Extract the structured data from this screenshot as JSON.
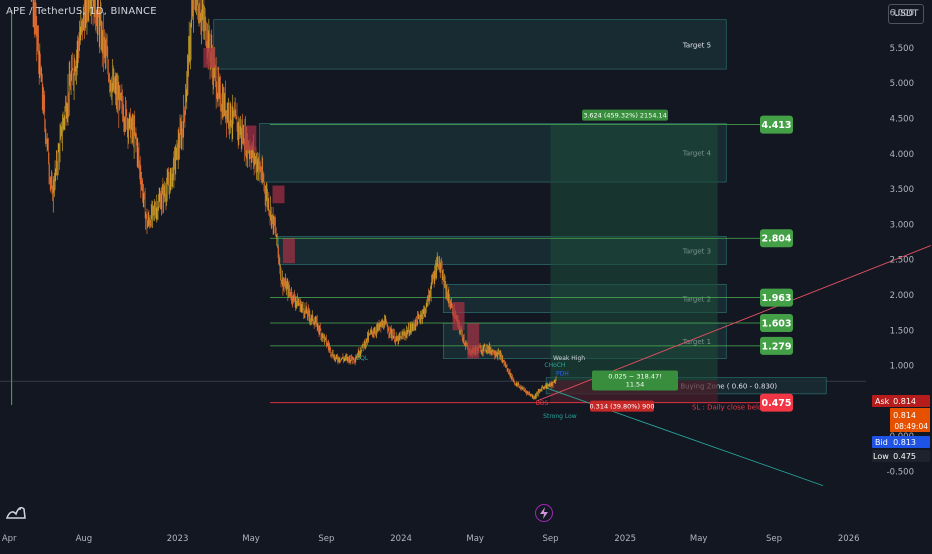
{
  "header": {
    "symbol": "APE / TetherUS, 1D, BINANCE",
    "currency": "USDT"
  },
  "colors": {
    "bg": "#131722",
    "up": "#c9a227",
    "down": "#e06b2e",
    "green_tag": "#4caf50",
    "red_tag": "#f23645",
    "zone_fill": "#1d3a40",
    "zone_stroke": "#2a6f6f",
    "profit_fill": "#1e4d3a",
    "loss_fill": "#4a1f2a"
  },
  "chart_data": {
    "type": "candlestick",
    "title": "APE / TetherUS, 1D, BINANCE",
    "y_axis": {
      "ticks": [
        6.0,
        5.5,
        5.0,
        4.5,
        4.0,
        3.5,
        3.0,
        2.5,
        2.0,
        1.5,
        1.0,
        0.5,
        0.0,
        -0.5
      ],
      "tick_labels": [
        "6.000",
        "5.500",
        "5.000",
        "4.500",
        "4.000",
        "3.500",
        "3.000",
        "2.500",
        "2.000",
        "1.500",
        "1.000",
        "0.500",
        "0.000",
        "-0.500"
      ],
      "range": [
        -0.75,
        6.75
      ]
    },
    "x_axis": {
      "labels": [
        "Apr",
        "Aug",
        "2023",
        "May",
        "Sep",
        "2024",
        "May",
        "Sep",
        "2025",
        "May",
        "Sep",
        "2026"
      ],
      "dates": [
        "2022-04-01",
        "2022-08-01",
        "2023-01-01",
        "2023-05-01",
        "2023-09-01",
        "2024-01-01",
        "2024-05-01",
        "2024-09-01",
        "2025-01-01",
        "2025-05-01",
        "2025-09-01",
        "2026-01-01"
      ],
      "range": [
        "2022-03-17",
        "2026-05-17"
      ]
    },
    "price_path": [
      [
        "2022-03-17",
        6.8
      ],
      [
        "2022-04-10",
        9.0
      ],
      [
        "2022-05-12",
        6.0
      ],
      [
        "2022-06-10",
        3.4
      ],
      [
        "2022-07-01",
        4.6
      ],
      [
        "2022-08-12",
        6.4
      ],
      [
        "2022-09-15",
        5.0
      ],
      [
        "2022-10-25",
        4.2
      ],
      [
        "2022-11-12",
        3.0
      ],
      [
        "2022-12-20",
        3.6
      ],
      [
        "2023-01-10",
        4.4
      ],
      [
        "2023-01-28",
        6.3
      ],
      [
        "2023-02-15",
        5.8
      ],
      [
        "2023-03-10",
        4.8
      ],
      [
        "2023-04-15",
        4.3
      ],
      [
        "2023-05-15",
        3.8
      ],
      [
        "2023-06-10",
        2.9
      ],
      [
        "2023-06-20",
        2.2
      ],
      [
        "2023-07-10",
        1.95
      ],
      [
        "2023-08-15",
        1.6
      ],
      [
        "2023-09-15",
        1.1
      ],
      [
        "2023-10-18",
        1.1
      ],
      [
        "2023-11-12",
        1.45
      ],
      [
        "2023-12-05",
        1.6
      ],
      [
        "2023-12-25",
        1.35
      ],
      [
        "2024-01-20",
        1.55
      ],
      [
        "2024-02-10",
        1.8
      ],
      [
        "2024-03-01",
        2.5
      ],
      [
        "2024-03-20",
        1.9
      ],
      [
        "2024-04-20",
        1.2
      ],
      [
        "2024-05-20",
        1.25
      ],
      [
        "2024-06-10",
        1.15
      ],
      [
        "2024-07-05",
        0.75
      ],
      [
        "2024-08-05",
        0.55
      ],
      [
        "2024-08-20",
        0.7
      ],
      [
        "2024-09-05",
        0.74
      ],
      [
        "2024-09-10",
        0.814
      ]
    ],
    "zones": [
      {
        "label": "Target 5",
        "low": 5.2,
        "high": 5.9,
        "start": "2023-03-01"
      },
      {
        "label": "Target 4",
        "low": 3.6,
        "high": 4.43,
        "start": "2023-05-15"
      },
      {
        "label": "Target 3",
        "low": 2.43,
        "high": 2.83,
        "start": "2023-06-15"
      },
      {
        "label": "Target 2",
        "low": 1.75,
        "high": 2.15,
        "start": "2024-03-10"
      },
      {
        "label": "Target 1",
        "low": 1.1,
        "high": 1.6,
        "start": "2024-03-10"
      },
      {
        "label": "Buying Zone ( 0.60 - 0.830)",
        "low": 0.6,
        "high": 0.83,
        "start": "2024-08-25"
      }
    ],
    "zone_end": "2025-06-15",
    "levels": [
      {
        "value": 4.413,
        "label": "4.413",
        "kind": "target"
      },
      {
        "value": 2.804,
        "label": "2.804",
        "kind": "target"
      },
      {
        "value": 1.963,
        "label": "1.963",
        "kind": "target"
      },
      {
        "value": 1.603,
        "label": "1.603",
        "kind": "target"
      },
      {
        "value": 1.279,
        "label": "1.279",
        "kind": "target"
      },
      {
        "value": 0.475,
        "label": "0.475",
        "kind": "stop"
      }
    ],
    "position": {
      "entry": 0.789,
      "target": 4.413,
      "stop": 0.475,
      "start": "2024-09-01",
      "end": "2025-06-01",
      "target_label": "3.624 (459.32%) 2154.14",
      "entry_label_top": "0.025 − 318.47!",
      "entry_label_bottom": "11.54",
      "stop_label": "0.314 (39.80%) 900"
    },
    "annotations": [
      {
        "text": "SL : Daily close below",
        "date": "2025-04-20",
        "value": 0.38,
        "color": "#f23645"
      },
      {
        "text": "CHoCH",
        "date": "2024-08-22",
        "value": 0.98,
        "color": "#26a69a"
      },
      {
        "text": "Weak High",
        "date": "2024-09-05",
        "value": 1.08,
        "color": "#d1d4dc"
      },
      {
        "text": "PDH",
        "date": "2024-09-10",
        "value": 0.86,
        "color": "#2962ff"
      },
      {
        "text": "BOS",
        "date": "2024-08-08",
        "value": 0.44,
        "color": "#f23645"
      },
      {
        "text": "Strong Low",
        "date": "2024-08-20",
        "value": 0.26,
        "color": "#26a69a"
      },
      {
        "text": "EQL",
        "date": "2023-10-20",
        "value": 1.08,
        "color": "#26a69a"
      }
    ],
    "trendlines": [
      {
        "from": [
          "2024-08-10",
          0.5
        ],
        "to": [
          "2026-05-15",
          2.7
        ],
        "color": "#e05060"
      },
      {
        "from": [
          "2024-08-20",
          0.7
        ],
        "to": [
          "2025-11-20",
          -0.7
        ],
        "color": "#26a69a"
      }
    ],
    "price_tags": {
      "ask": {
        "label": "Ask",
        "value": "0.814"
      },
      "last": {
        "value": "0.814",
        "countdown": "08:49:04"
      },
      "bid": {
        "label": "Bid",
        "value": "0.813"
      },
      "low": {
        "label": "Low",
        "value": "0.475"
      }
    },
    "grid": false
  }
}
